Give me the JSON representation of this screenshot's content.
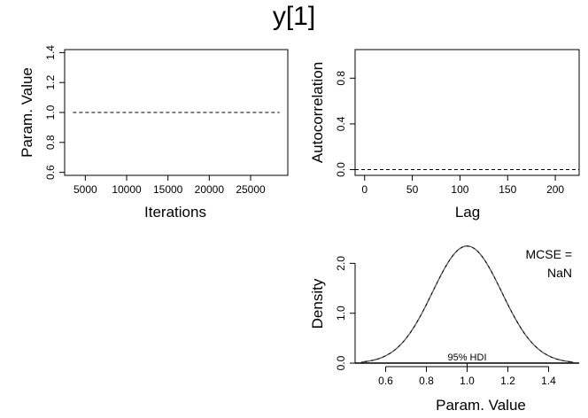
{
  "figure": {
    "title": "y[1]"
  },
  "chart_data": [
    {
      "panel": "trace",
      "type": "line",
      "xlabel": "Iterations",
      "ylabel": "Param. Value",
      "xlim": [
        2500,
        29500
      ],
      "ylim": [
        0.58,
        1.42
      ],
      "xticks": [
        5000,
        10000,
        15000,
        20000,
        25000
      ],
      "xtick_labels": [
        "5000",
        "10000",
        "15000",
        "20000",
        "25000"
      ],
      "yticks": [
        0.6,
        0.8,
        1.0,
        1.2,
        1.4
      ],
      "ytick_labels": [
        "0.6",
        "0.8",
        "1.0",
        "1.2",
        "1.4"
      ],
      "series": [
        {
          "x": [
            3500,
            28500
          ],
          "y": [
            1.0,
            1.0
          ],
          "style": "dashed"
        }
      ]
    },
    {
      "panel": "autocorrelation",
      "type": "line",
      "xlabel": "Lag",
      "ylabel": "Autocorrelation",
      "xlim": [
        -10,
        225
      ],
      "ylim": [
        -0.05,
        1.05
      ],
      "xticks": [
        0,
        50,
        100,
        150,
        200
      ],
      "xtick_labels": [
        "0",
        "50",
        "100",
        "150",
        "200"
      ],
      "yticks": [
        0.0,
        0.4,
        0.8
      ],
      "ytick_labels": [
        "0.0",
        "0.4",
        "0.8"
      ],
      "series": [
        {
          "x": [
            -10,
            225
          ],
          "y": [
            0.0,
            0.0
          ],
          "style": "dashed"
        }
      ]
    },
    {
      "panel": "density",
      "type": "line",
      "xlabel": "Param. Value",
      "ylabel": "Density",
      "xlim": [
        0.45,
        1.55
      ],
      "ylim": [
        -0.07,
        2.45
      ],
      "xticks": [
        0.6,
        0.8,
        1.0,
        1.2,
        1.4
      ],
      "xtick_labels": [
        "0.6",
        "0.8",
        "1.0",
        "1.2",
        "1.4"
      ],
      "yticks": [
        0.0,
        1.0,
        2.0
      ],
      "ytick_labels": [
        "0.0",
        "1.0",
        "2.0"
      ],
      "curve": {
        "mean": 1.0,
        "sd": 0.17,
        "x_from": 0.48,
        "x_to": 1.52
      },
      "annotations": {
        "mcse_label": "MCSE =",
        "mcse_value": "NaN",
        "hdi_label": "95% HDI"
      }
    }
  ]
}
